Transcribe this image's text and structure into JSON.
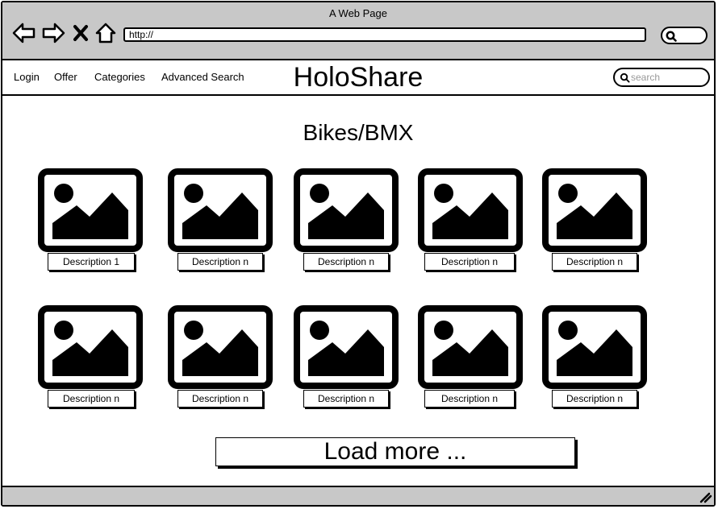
{
  "window": {
    "title": "A Web Page",
    "url": "http://"
  },
  "icons": {
    "back": "back-arrow-icon",
    "forward": "forward-arrow-icon",
    "stop": "close-x-icon",
    "home": "home-icon",
    "search": "magnifier-icon",
    "image": "image-placeholder-icon",
    "resize": "resize-grip-icon"
  },
  "nav": {
    "links": [
      "Login",
      "Offer",
      "Categories",
      "Advanced Search"
    ],
    "logo": "HoloShare",
    "search_placeholder": "search"
  },
  "main": {
    "heading": "Bikes/BMX",
    "tiles": [
      "Description 1",
      "Description n",
      "Description n",
      "Description n",
      "Description n",
      "Description n",
      "Description n",
      "Description n",
      "Description n",
      "Description n"
    ],
    "load_more": "Load more ..."
  }
}
